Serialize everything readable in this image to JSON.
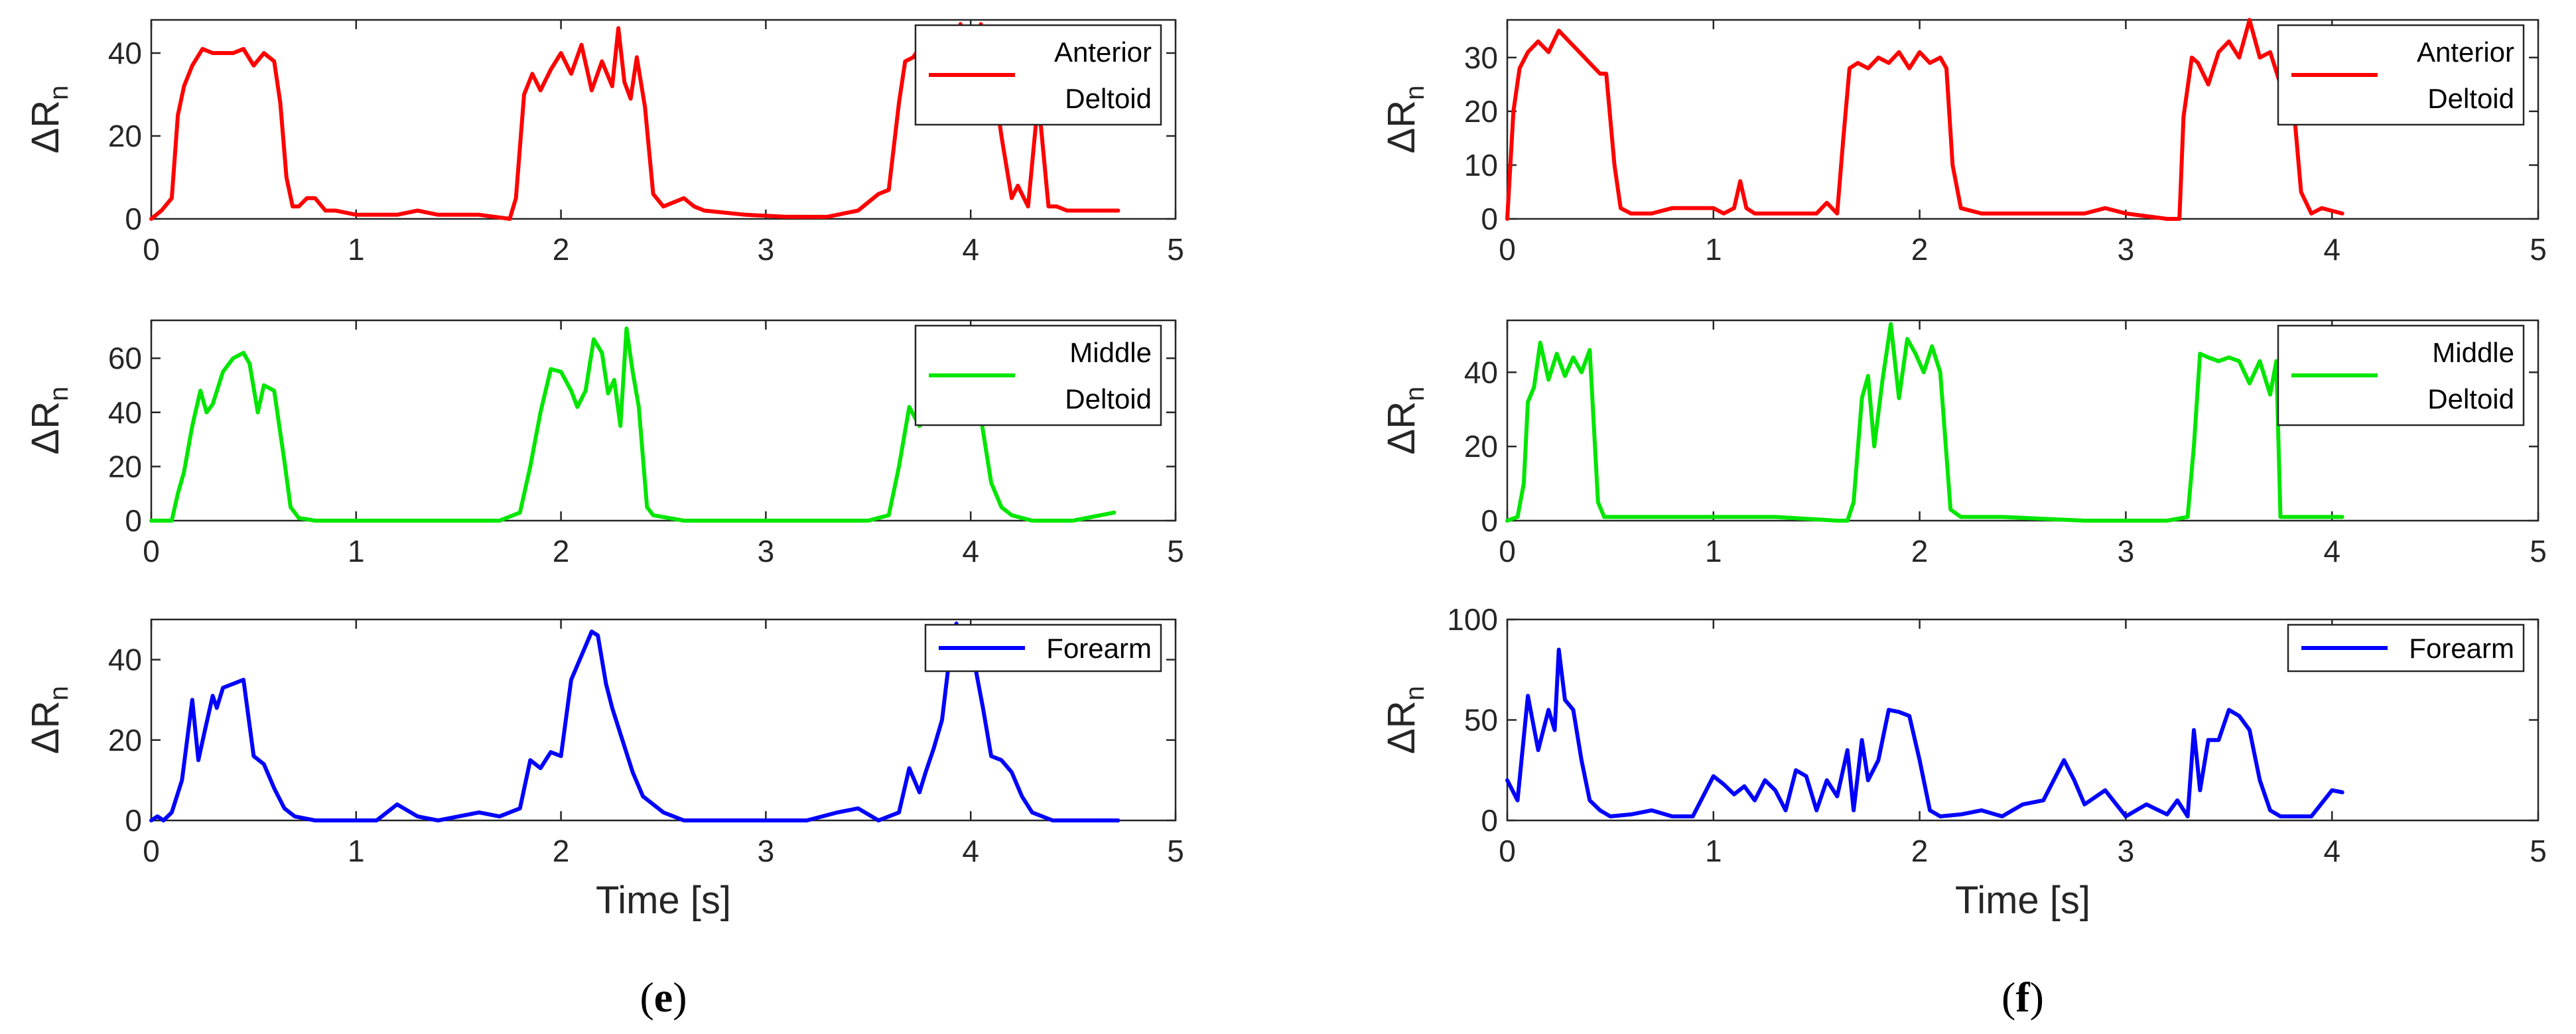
{
  "figure_captions": [
    {
      "open": "(",
      "letter": "e",
      "close": ")"
    },
    {
      "open": "(",
      "letter": "f",
      "close": ")"
    }
  ],
  "colors": {
    "red": "#ff0000",
    "green": "#00e600",
    "blue": "#0000ff"
  },
  "chart_data": [
    {
      "type": "line",
      "panel": "e",
      "row": 1,
      "xlabel": "",
      "ylabel": "ΔR",
      "ylabel_sub": "n",
      "xlim": [
        0,
        5
      ],
      "ylim": [
        0,
        48
      ],
      "xticks": [
        "0",
        "1",
        "2",
        "3",
        "4",
        "5"
      ],
      "yticks": [
        "0",
        "20",
        "40"
      ],
      "legend_position": "top-right",
      "series": [
        {
          "name_lines": [
            "Anterior",
            "Deltoid"
          ],
          "color": "#ff0000",
          "x": [
            0,
            0.05,
            0.1,
            0.13,
            0.16,
            0.2,
            0.25,
            0.3,
            0.35,
            0.4,
            0.45,
            0.5,
            0.55,
            0.6,
            0.63,
            0.66,
            0.69,
            0.72,
            0.76,
            0.8,
            0.85,
            0.9,
            1.0,
            1.2,
            1.3,
            1.4,
            1.6,
            1.75,
            1.78,
            1.82,
            1.86,
            1.9,
            1.95,
            2.0,
            2.05,
            2.1,
            2.15,
            2.2,
            2.25,
            2.28,
            2.31,
            2.34,
            2.37,
            2.41,
            2.45,
            2.5,
            2.6,
            2.65,
            2.7,
            2.9,
            3.1,
            3.3,
            3.45,
            3.55,
            3.6,
            3.65,
            3.68,
            3.72,
            3.76,
            3.8,
            3.85,
            3.9,
            3.95,
            4.0,
            4.05,
            4.1,
            4.15,
            4.2,
            4.23,
            4.28,
            4.33,
            4.38,
            4.42,
            4.47,
            4.55,
            4.72
          ],
          "y": [
            0,
            2,
            5,
            25,
            32,
            37,
            41,
            40,
            40,
            40,
            41,
            37,
            40,
            38,
            28,
            10,
            3,
            3,
            5,
            5,
            2,
            2,
            1,
            1,
            2,
            1,
            1,
            0,
            5,
            30,
            35,
            31,
            36,
            40,
            35,
            42,
            31,
            38,
            32,
            46,
            33,
            29,
            39,
            27,
            6,
            3,
            5,
            3,
            2,
            1,
            0.5,
            0.5,
            2,
            6,
            7,
            28,
            38,
            39,
            42,
            35,
            45,
            37,
            47,
            40,
            47,
            38,
            20,
            5,
            8,
            3,
            29,
            3,
            3,
            2,
            2,
            2
          ]
        }
      ]
    },
    {
      "type": "line",
      "panel": "e",
      "row": 2,
      "xlabel": "",
      "ylabel": "ΔR",
      "ylabel_sub": "n",
      "xlim": [
        0,
        5
      ],
      "ylim": [
        0,
        74
      ],
      "xticks": [
        "0",
        "1",
        "2",
        "3",
        "4",
        "5"
      ],
      "yticks": [
        "0",
        "20",
        "40",
        "60"
      ],
      "legend_position": "top-right",
      "series": [
        {
          "name_lines": [
            "Middle",
            "Deltoid"
          ],
          "color": "#00e600",
          "x": [
            0,
            0.05,
            0.1,
            0.13,
            0.16,
            0.2,
            0.24,
            0.27,
            0.3,
            0.35,
            0.4,
            0.45,
            0.48,
            0.52,
            0.55,
            0.6,
            0.65,
            0.68,
            0.72,
            0.8,
            1.0,
            1.2,
            1.5,
            1.7,
            1.8,
            1.85,
            1.9,
            1.95,
            2.0,
            2.05,
            2.08,
            2.12,
            2.16,
            2.2,
            2.23,
            2.26,
            2.29,
            2.32,
            2.35,
            2.38,
            2.42,
            2.45,
            2.6,
            2.8,
            3.0,
            3.2,
            3.5,
            3.6,
            3.65,
            3.7,
            3.75,
            3.8,
            3.85,
            3.9,
            3.95,
            4.0,
            4.05,
            4.1,
            4.15,
            4.2,
            4.3,
            4.5,
            4.7
          ],
          "y": [
            0,
            0,
            0,
            10,
            18,
            35,
            48,
            40,
            43,
            55,
            60,
            62,
            58,
            40,
            50,
            48,
            22,
            5,
            1,
            0,
            0,
            0,
            0,
            0,
            3,
            20,
            40,
            56,
            55,
            48,
            42,
            48,
            67,
            62,
            47,
            52,
            35,
            71,
            55,
            42,
            5,
            2,
            0,
            0,
            0,
            0,
            0,
            2,
            20,
            42,
            35,
            38,
            45,
            52,
            40,
            52,
            38,
            14,
            5,
            2,
            0,
            0,
            3
          ]
        }
      ]
    },
    {
      "type": "line",
      "panel": "e",
      "row": 3,
      "xlabel": "Time [s]",
      "ylabel": "ΔR",
      "ylabel_sub": "n",
      "xlim": [
        0,
        5
      ],
      "ylim": [
        0,
        50
      ],
      "xticks": [
        "0",
        "1",
        "2",
        "3",
        "4",
        "5"
      ],
      "yticks": [
        "0",
        "20",
        "40"
      ],
      "legend_position": "top-right",
      "series": [
        {
          "name_lines": [
            "Forearm"
          ],
          "color": "#0000ff",
          "x": [
            0,
            0.03,
            0.06,
            0.1,
            0.15,
            0.2,
            0.23,
            0.26,
            0.3,
            0.32,
            0.35,
            0.4,
            0.45,
            0.5,
            0.55,
            0.6,
            0.65,
            0.7,
            0.8,
            0.9,
            1.0,
            1.1,
            1.2,
            1.3,
            1.4,
            1.5,
            1.6,
            1.7,
            1.8,
            1.85,
            1.9,
            1.95,
            2.0,
            2.05,
            2.1,
            2.15,
            2.18,
            2.22,
            2.25,
            2.3,
            2.35,
            2.4,
            2.5,
            2.6,
            2.7,
            2.8,
            3.0,
            3.2,
            3.35,
            3.45,
            3.55,
            3.65,
            3.7,
            3.75,
            3.78,
            3.82,
            3.86,
            3.9,
            3.93,
            3.96,
            4.0,
            4.03,
            4.06,
            4.1,
            4.15,
            4.2,
            4.25,
            4.3,
            4.4,
            4.5,
            4.6,
            4.72
          ],
          "y": [
            0,
            1,
            0,
            2,
            10,
            30,
            15,
            22,
            31,
            28,
            33,
            34,
            35,
            16,
            14,
            8,
            3,
            1,
            0,
            0,
            0,
            0,
            4,
            1,
            0,
            1,
            2,
            1,
            3,
            15,
            13,
            17,
            16,
            35,
            41,
            47,
            46,
            34,
            28,
            20,
            12,
            6,
            2,
            0,
            0,
            0,
            0,
            0,
            2,
            3,
            0,
            2,
            13,
            7,
            12,
            18,
            25,
            42,
            49,
            41,
            45,
            36,
            28,
            16,
            15,
            12,
            6,
            2,
            0,
            0,
            0,
            0
          ]
        }
      ]
    },
    {
      "type": "line",
      "panel": "f",
      "row": 1,
      "xlabel": "",
      "ylabel": "ΔR",
      "ylabel_sub": "n",
      "xlim": [
        0,
        5
      ],
      "ylim": [
        0,
        37
      ],
      "xticks": [
        "0",
        "1",
        "2",
        "3",
        "4",
        "5"
      ],
      "yticks": [
        "0",
        "10",
        "20",
        "30"
      ],
      "legend_position": "top-right",
      "series": [
        {
          "name_lines": [
            "Anterior",
            "Deltoid"
          ],
          "color": "#ff0000",
          "x": [
            0,
            0.03,
            0.06,
            0.1,
            0.15,
            0.2,
            0.25,
            0.3,
            0.35,
            0.4,
            0.45,
            0.48,
            0.52,
            0.55,
            0.6,
            0.7,
            0.8,
            0.9,
            1.0,
            1.05,
            1.1,
            1.13,
            1.16,
            1.2,
            1.3,
            1.4,
            1.5,
            1.55,
            1.6,
            1.63,
            1.66,
            1.7,
            1.75,
            1.8,
            1.85,
            1.9,
            1.95,
            2.0,
            2.05,
            2.1,
            2.13,
            2.16,
            2.2,
            2.3,
            2.4,
            2.6,
            2.8,
            2.9,
            3.0,
            3.2,
            3.26,
            3.28,
            3.32,
            3.35,
            3.4,
            3.45,
            3.5,
            3.55,
            3.6,
            3.65,
            3.7,
            3.75,
            3.8,
            3.85,
            3.9,
            3.95,
            4.05
          ],
          "y": [
            0,
            20,
            28,
            31,
            33,
            31,
            35,
            33,
            31,
            29,
            27,
            27,
            10,
            2,
            1,
            1,
            2,
            2,
            2,
            1,
            2,
            7,
            2,
            1,
            1,
            1,
            1,
            3,
            1,
            15,
            28,
            29,
            28,
            30,
            29,
            31,
            28,
            31,
            29,
            30,
            28,
            10,
            2,
            1,
            1,
            1,
            1,
            2,
            1,
            0,
            0,
            19,
            30,
            29,
            25,
            31,
            33,
            30,
            37,
            30,
            31,
            25,
            27,
            5,
            1,
            2,
            1
          ]
        }
      ]
    },
    {
      "type": "line",
      "panel": "f",
      "row": 2,
      "xlabel": "",
      "ylabel": "ΔR",
      "ylabel_sub": "n",
      "xlim": [
        0,
        5
      ],
      "ylim": [
        0,
        54
      ],
      "xticks": [
        "0",
        "1",
        "2",
        "3",
        "4",
        "5"
      ],
      "yticks": [
        "0",
        "20",
        "40"
      ],
      "legend_position": "top-right",
      "series": [
        {
          "name_lines": [
            "Middle",
            "Deltoid"
          ],
          "color": "#00e600",
          "x": [
            0,
            0.05,
            0.08,
            0.1,
            0.13,
            0.16,
            0.2,
            0.24,
            0.28,
            0.32,
            0.36,
            0.4,
            0.44,
            0.47,
            0.5,
            0.7,
            1.0,
            1.3,
            1.6,
            1.65,
            1.68,
            1.72,
            1.75,
            1.78,
            1.82,
            1.86,
            1.9,
            1.94,
            1.98,
            2.02,
            2.06,
            2.1,
            2.15,
            2.2,
            2.4,
            2.8,
            3.2,
            3.3,
            3.33,
            3.36,
            3.4,
            3.45,
            3.5,
            3.55,
            3.6,
            3.65,
            3.7,
            3.73,
            3.75,
            3.8,
            3.9,
            4.05
          ],
          "y": [
            0,
            1,
            10,
            32,
            36,
            48,
            38,
            45,
            39,
            44,
            40,
            46,
            5,
            1,
            1,
            1,
            1,
            1,
            0,
            0,
            5,
            33,
            39,
            20,
            38,
            53,
            33,
            49,
            45,
            40,
            47,
            40,
            3,
            1,
            1,
            0,
            0,
            1,
            20,
            45,
            44,
            43,
            44,
            43,
            37,
            43,
            34,
            43,
            1,
            1,
            1,
            1
          ]
        }
      ]
    },
    {
      "type": "line",
      "panel": "f",
      "row": 3,
      "xlabel": "Time [s]",
      "ylabel": "ΔR",
      "ylabel_sub": "n",
      "xlim": [
        0,
        5
      ],
      "ylim": [
        0,
        100
      ],
      "xticks": [
        "0",
        "1",
        "2",
        "3",
        "4",
        "5"
      ],
      "yticks": [
        "0",
        "50",
        "100"
      ],
      "legend_position": "top-right",
      "series": [
        {
          "name_lines": [
            "Forearm"
          ],
          "color": "#0000ff",
          "x": [
            0,
            0.05,
            0.1,
            0.15,
            0.2,
            0.23,
            0.25,
            0.28,
            0.32,
            0.36,
            0.4,
            0.45,
            0.5,
            0.6,
            0.7,
            0.8,
            0.9,
            1.0,
            1.05,
            1.1,
            1.15,
            1.2,
            1.25,
            1.3,
            1.35,
            1.4,
            1.45,
            1.5,
            1.55,
            1.6,
            1.65,
            1.68,
            1.72,
            1.75,
            1.8,
            1.85,
            1.9,
            1.95,
            2.0,
            2.05,
            2.1,
            2.2,
            2.3,
            2.4,
            2.5,
            2.6,
            2.7,
            2.75,
            2.8,
            2.9,
            3.0,
            3.1,
            3.2,
            3.25,
            3.3,
            3.33,
            3.36,
            3.4,
            3.45,
            3.5,
            3.55,
            3.6,
            3.65,
            3.7,
            3.75,
            3.8,
            3.9,
            4.0,
            4.05
          ],
          "y": [
            20,
            10,
            62,
            35,
            55,
            45,
            85,
            60,
            55,
            30,
            10,
            5,
            2,
            3,
            5,
            2,
            2,
            22,
            18,
            13,
            17,
            10,
            20,
            15,
            5,
            25,
            22,
            5,
            20,
            12,
            35,
            5,
            40,
            20,
            30,
            55,
            54,
            52,
            30,
            5,
            2,
            3,
            5,
            2,
            8,
            10,
            30,
            20,
            8,
            15,
            2,
            8,
            3,
            10,
            2,
            45,
            15,
            40,
            40,
            55,
            52,
            45,
            20,
            5,
            2,
            2,
            2,
            15,
            14
          ]
        }
      ]
    }
  ]
}
